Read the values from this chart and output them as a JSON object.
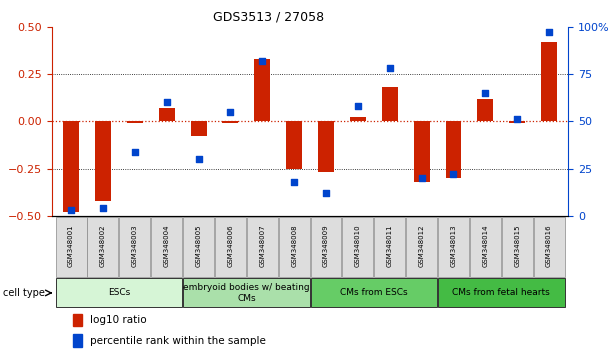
{
  "title": "GDS3513 / 27058",
  "samples": [
    "GSM348001",
    "GSM348002",
    "GSM348003",
    "GSM348004",
    "GSM348005",
    "GSM348006",
    "GSM348007",
    "GSM348008",
    "GSM348009",
    "GSM348010",
    "GSM348011",
    "GSM348012",
    "GSM348013",
    "GSM348014",
    "GSM348015",
    "GSM348016"
  ],
  "log10_ratio": [
    -0.48,
    -0.42,
    -0.01,
    0.07,
    -0.08,
    -0.01,
    0.33,
    -0.25,
    -0.27,
    0.02,
    0.18,
    -0.32,
    -0.3,
    0.12,
    -0.01,
    0.42
  ],
  "percentile_rank": [
    3,
    4,
    34,
    60,
    30,
    55,
    82,
    18,
    12,
    58,
    78,
    20,
    22,
    65,
    51,
    97
  ],
  "bar_color": "#cc2200",
  "dot_color": "#0044cc",
  "cell_types": [
    {
      "label": "ESCs",
      "start": 0,
      "end": 3,
      "color": "#d6f5d6"
    },
    {
      "label": "embryoid bodies w/ beating\nCMs",
      "start": 4,
      "end": 7,
      "color": "#aae0aa"
    },
    {
      "label": "CMs from ESCs",
      "start": 8,
      "end": 11,
      "color": "#66cc66"
    },
    {
      "label": "CMs from fetal hearts",
      "start": 12,
      "end": 15,
      "color": "#44bb44"
    }
  ],
  "ylim_left": [
    -0.5,
    0.5
  ],
  "ylim_right": [
    0,
    100
  ],
  "yticks_left": [
    -0.5,
    -0.25,
    0,
    0.25,
    0.5
  ],
  "yticks_right": [
    0,
    25,
    50,
    75,
    100
  ],
  "legend_red": "log10 ratio",
  "legend_blue": "percentile rank within the sample"
}
